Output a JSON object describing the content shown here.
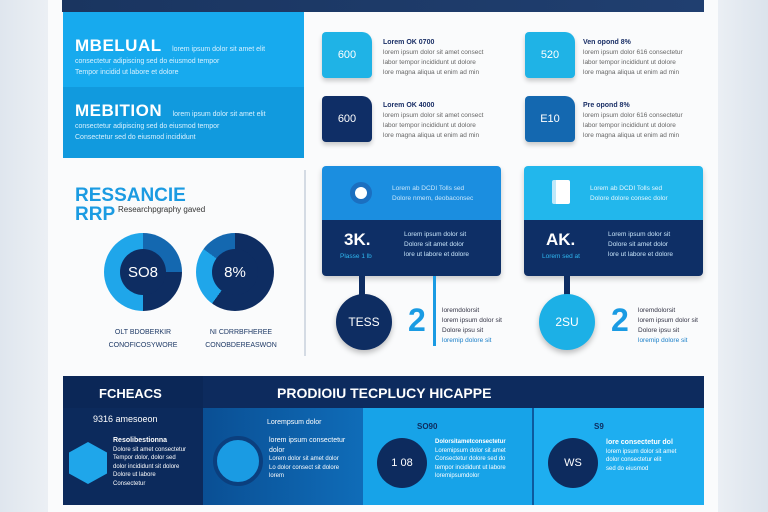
{
  "hero": {
    "block1": {
      "title": "MBELUAL",
      "lines": [
        "lorem ipsum dolor sit amet elit",
        "consectetur adipiscing sed do eiusmod tempor",
        "Tempor incidid ut labore et dolore"
      ]
    },
    "block2": {
      "title": "MEBITION",
      "lines": [
        "lorem ipsum dolor sit amet elit",
        "consectetur adipiscing sed do eiusmod tempor",
        "Consectetur sed do eiusmod incididunt"
      ]
    }
  },
  "research": {
    "title1": "RESSANCIE",
    "title2": "RRP",
    "subtitle": "Researchpgraphy gaved",
    "donuts": [
      {
        "value": "SO8",
        "label1": "OLT BDOBERKIR",
        "label2": "CONOFICOSYWORE"
      },
      {
        "value": "8%",
        "label1": "NI CDRRBFHEREE",
        "label2": "CONOBDEREASWON"
      }
    ]
  },
  "folders": [
    {
      "value": "600",
      "title": "Lorem OK 0700",
      "lines": [
        "lorem ipsum dolor sit amet consect",
        "labor tempor incididunt ut dolore",
        "lore magna aliqua ut enim ad min"
      ],
      "color": "#1fb3e6"
    },
    {
      "value": "520",
      "title": "Ven opond 8%",
      "lines": [
        "lorem ipsum dolor 616 consectetur",
        "labor tempor incididunt ut dolore",
        "lore magna aliqua ut enim ad min"
      ],
      "color": "#1fb3e6"
    },
    {
      "value": "600",
      "title": "Lorem OK 4000",
      "lines": [
        "lorem ipsum dolor sit amet consect",
        "labor tempor incididunt ut dolore",
        "lore magna aliqua ut enim ad min"
      ],
      "color": "#0f2e66"
    },
    {
      "value": "E10",
      "title": "Pre opond 8%",
      "lines": [
        "lorem ipsum dolor 616 consectetur",
        "labor tempor incididunt ut dolore",
        "lore magna aliqua ut enim ad min"
      ],
      "color": "#1468b0"
    }
  ],
  "cards": [
    {
      "icon": "target-icon",
      "top1": "Lorem ab DCDI Tolls sed",
      "top2": "Dolore nmem, deobaconsec",
      "big": "3K.",
      "sub": "Plasse 1 lb",
      "lines": [
        "Lorem ipsum dolor sit",
        "Dolore sit amet dolor",
        "lore ut labore et dolore"
      ],
      "pin": "TESS",
      "number": "2",
      "pinlines": [
        "loremdolorsit",
        "lorem ipsum dolor sit",
        "Dolore ipsu sit",
        "loremip dolore sit"
      ],
      "topcolor": "#1b8ee0",
      "pincolor": "#0e2d62"
    },
    {
      "icon": "document-icon",
      "top1": "Lorem ab DCDI Tolls sed",
      "top2": "Dolore dolore consec dolor",
      "big": "AK.",
      "sub": "Lorem sed at",
      "lines": [
        "Lorem ipsum dolor sit",
        "Dolore sit amet dolor",
        "lore ut labore et dolore"
      ],
      "pin": "2SU",
      "number": "2",
      "pinlines": [
        "loremdolorsit",
        "lorem ipsum dolor sit",
        "Dolore ipsu sit",
        "loremip dolore sit"
      ],
      "topcolor": "#22b7ec",
      "pincolor": "#1cb0e6"
    }
  ],
  "band": {
    "left_title": "FCHEACS",
    "title": "PRODIOIU TECPLUCY HICAPPE",
    "col1": {
      "stat": "9316 amesoeon",
      "heading": "Resolibestionna",
      "lines": [
        "Dolore sit amet consectetur",
        "Tempor dolor, dolor sed",
        "dolor incididunt sit dolore",
        "Dolore ut labore",
        "Consectetur"
      ]
    },
    "col2": {
      "heading": "Lorempsum dolor",
      "sub": "lorem ipsum consectetur dolor",
      "lines": [
        "Lorem dolor sit amet dolor",
        "Lo dolor consect sit dolore",
        "lorem"
      ]
    },
    "col3": {
      "stat": "SO90",
      "circle": "1 08",
      "lines": [
        "Dolorsitametconsectetur",
        "Loremipsum dolor sit amet",
        "Consectetur dolore sed do",
        "tempor incididunt ut labore",
        "loremipsumdolor"
      ]
    },
    "col4": {
      "stat": "S9",
      "circle": "WS",
      "heading": "lore consectetur dol",
      "lines": [
        "lorem ipsum dolor sit amet",
        "dolor consectetur elit",
        "sed do eiusmod"
      ]
    }
  },
  "colors": {
    "navy": "#0e2d62",
    "blue": "#17aaee",
    "accent": "#1a9be3"
  }
}
